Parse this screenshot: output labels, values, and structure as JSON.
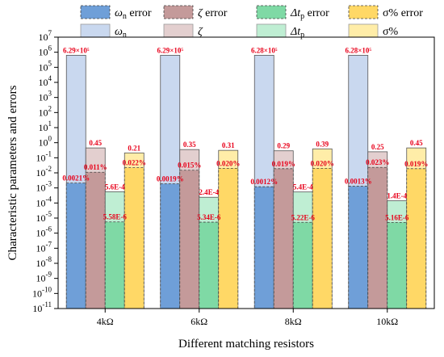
{
  "chart_data": {
    "type": "bar",
    "ylabel": "Characteristic parameters and errors",
    "xlabel": "Different matching resistors",
    "y_scale": "log",
    "ylim": [
      1e-11,
      10000000.0
    ],
    "y_ticks": [
      {
        "value": 10000000.0,
        "base": "10",
        "exp": "7"
      },
      {
        "value": 1000000.0,
        "base": "10",
        "exp": "6"
      },
      {
        "value": 100000.0,
        "base": "10",
        "exp": "5"
      },
      {
        "value": 10000.0,
        "base": "10",
        "exp": "4"
      },
      {
        "value": 1000.0,
        "base": "10",
        "exp": "3"
      },
      {
        "value": 100.0,
        "base": "10",
        "exp": "2"
      },
      {
        "value": 10.0,
        "base": "10",
        "exp": "1"
      },
      {
        "value": 1.0,
        "base": "10",
        "exp": "0"
      },
      {
        "value": 0.1,
        "base": "10",
        "exp": "-1"
      },
      {
        "value": 0.01,
        "base": "10",
        "exp": "-2"
      },
      {
        "value": 0.001,
        "base": "10",
        "exp": "-3"
      },
      {
        "value": 0.0001,
        "base": "10",
        "exp": "-4"
      },
      {
        "value": 1e-05,
        "base": "10",
        "exp": "-5"
      },
      {
        "value": 1e-06,
        "base": "10",
        "exp": "-6"
      },
      {
        "value": 1e-07,
        "base": "10",
        "exp": "-7"
      },
      {
        "value": 1e-08,
        "base": "10",
        "exp": "-8"
      },
      {
        "value": 1e-09,
        "base": "10",
        "exp": "-9"
      },
      {
        "value": 1e-10,
        "base": "10",
        "exp": "-10"
      },
      {
        "value": 1e-11,
        "base": "10",
        "exp": "-11"
      }
    ],
    "categories": [
      "4kΩ",
      "6kΩ",
      "8kΩ",
      "10kΩ"
    ],
    "legend": [
      {
        "key": "wn_err",
        "sym": "ω",
        "sub": "n",
        "suffix": " error",
        "italic": true,
        "color": "#6f9fd8",
        "dashed": true
      },
      {
        "key": "z_err",
        "sym": "ζ",
        "sub": "",
        "suffix": " error",
        "italic": true,
        "color": "#c49a9a",
        "dashed": true
      },
      {
        "key": "tp_err",
        "sym": "Δt",
        "sub": "p",
        "suffix": " error",
        "italic": true,
        "color": "#7fd9a5",
        "dashed": true
      },
      {
        "key": "s_err",
        "sym": "σ%",
        "sub": "",
        "suffix": " error",
        "italic": false,
        "color": "#ffd866",
        "dashed": true
      },
      {
        "key": "wn",
        "sym": "ω",
        "sub": "n",
        "suffix": "",
        "italic": true,
        "color": "#c9d8ef",
        "dashed": false
      },
      {
        "key": "z",
        "sym": "ζ",
        "sub": "",
        "suffix": "",
        "italic": true,
        "color": "#e3cfcf",
        "dashed": false
      },
      {
        "key": "tp",
        "sym": "Δt",
        "sub": "p",
        "suffix": "",
        "italic": true,
        "color": "#bfeed3",
        "dashed": false
      },
      {
        "key": "s",
        "sym": "σ%",
        "sub": "",
        "suffix": "",
        "italic": false,
        "color": "#ffeda8",
        "dashed": false
      }
    ],
    "groups": [
      {
        "category": "4kΩ",
        "bars": [
          {
            "param": "ωn",
            "value": 629000,
            "label": "6.29×10⁵",
            "color": "#c9d8ef",
            "error": 0.0021,
            "error_label": "0.0021%",
            "error_color": "#6f9fd8"
          },
          {
            "param": "ζ",
            "value": 0.45,
            "label": "0.45",
            "color": "#e3cfcf",
            "error": 0.011,
            "error_label": "0.011%",
            "error_color": "#c49a9a"
          },
          {
            "param": "Δtp",
            "value": 0.00056,
            "label": "5.6E-4",
            "color": "#bfeed3",
            "error": 5.58e-06,
            "error_label": "5.58E-6",
            "error_color": "#7fd9a5"
          },
          {
            "param": "σ%",
            "value": 0.21,
            "label": "0.21",
            "color": "#ffeda8",
            "error": 0.022,
            "error_label": "0.022%",
            "error_color": "#ffd866"
          }
        ]
      },
      {
        "category": "6kΩ",
        "bars": [
          {
            "param": "ωn",
            "value": 629000,
            "label": "6.29×10⁵",
            "color": "#c9d8ef",
            "error": 0.0019,
            "error_label": "0.0019%",
            "error_color": "#6f9fd8"
          },
          {
            "param": "ζ",
            "value": 0.35,
            "label": "0.35",
            "color": "#e3cfcf",
            "error": 0.015,
            "error_label": "0.015%",
            "error_color": "#c49a9a"
          },
          {
            "param": "Δtp",
            "value": 0.00024,
            "label": "2.4E-4",
            "color": "#bfeed3",
            "error": 5.34e-06,
            "error_label": "5.34E-6",
            "error_color": "#7fd9a5"
          },
          {
            "param": "σ%",
            "value": 0.31,
            "label": "0.31",
            "color": "#ffeda8",
            "error": 0.02,
            "error_label": "0.020%",
            "error_color": "#ffd866"
          }
        ]
      },
      {
        "category": "8kΩ",
        "bars": [
          {
            "param": "ωn",
            "value": 628000,
            "label": "6.28×10⁵",
            "color": "#c9d8ef",
            "error": 0.0012,
            "error_label": "0.0012%",
            "error_color": "#6f9fd8"
          },
          {
            "param": "ζ",
            "value": 0.29,
            "label": "0.29",
            "color": "#e3cfcf",
            "error": 0.019,
            "error_label": "0.019%",
            "error_color": "#c49a9a"
          },
          {
            "param": "Δtp",
            "value": 0.00054,
            "label": "5.4E-4",
            "color": "#bfeed3",
            "error": 5.22e-06,
            "error_label": "5.22E-6",
            "error_color": "#7fd9a5"
          },
          {
            "param": "σ%",
            "value": 0.39,
            "label": "0.39",
            "color": "#ffeda8",
            "error": 0.02,
            "error_label": "0.020%",
            "error_color": "#ffd866"
          }
        ]
      },
      {
        "category": "10kΩ",
        "bars": [
          {
            "param": "ωn",
            "value": 628000,
            "label": "6.28×10⁵",
            "color": "#c9d8ef",
            "error": 0.0013,
            "error_label": "0.0013%",
            "error_color": "#6f9fd8"
          },
          {
            "param": "ζ",
            "value": 0.25,
            "label": "0.25",
            "color": "#e3cfcf",
            "error": 0.023,
            "error_label": "0.023%",
            "error_color": "#c49a9a"
          },
          {
            "param": "Δtp",
            "value": 0.00014,
            "label": "1.4E-4",
            "color": "#bfeed3",
            "error": 5.16e-06,
            "error_label": "5.16E-6",
            "error_color": "#7fd9a5"
          },
          {
            "param": "σ%",
            "value": 0.45,
            "label": "0.45",
            "color": "#ffeda8",
            "error": 0.019,
            "error_label": "0.019%",
            "error_color": "#ffd866"
          }
        ]
      }
    ]
  }
}
